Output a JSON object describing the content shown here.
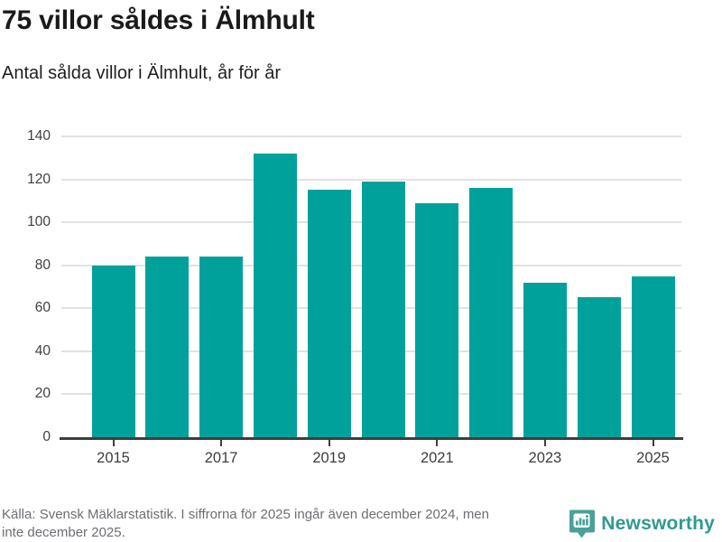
{
  "header": {
    "title": "75 villor såldes i Älmhult",
    "subtitle": "Antal sålda villor i Älmhult, år för år"
  },
  "chart_data": {
    "type": "bar",
    "title": "75 villor såldes i Älmhult",
    "subtitle": "Antal sålda villor i Älmhult, år för år",
    "categories": [
      "2015",
      "2016",
      "2017",
      "2018",
      "2019",
      "2020",
      "2021",
      "2022",
      "2023",
      "2024",
      "2025"
    ],
    "values": [
      80,
      84,
      84,
      132,
      115,
      119,
      109,
      116,
      72,
      65,
      75
    ],
    "xlabel": "",
    "ylabel": "",
    "ylim": [
      0,
      140
    ],
    "ytick_step": 20,
    "ytick_labels": [
      "0",
      "20",
      "40",
      "60",
      "80",
      "100",
      "120",
      "140"
    ],
    "xtick_labels": [
      "2015",
      "2017",
      "2019",
      "2021",
      "2023",
      "2025"
    ],
    "grid": "horizontal",
    "legend": "none",
    "bar_color": "#00a19b"
  },
  "footer": {
    "source_lines": {
      "line1": "Källa: Svensk Mäklarstatistik. I siffrorna för 2025 ingår även december 2024, men",
      "line2": "inte december 2025."
    },
    "logo_text": "Newsworthy"
  },
  "colors": {
    "bar": "#00a19b",
    "gridline": "#e2e2e2",
    "axis": "#3d3d3d",
    "title_text": "#1a1a1a",
    "source_text": "#6e6e74",
    "logo_bubble": "#4aa09a",
    "logo_text": "#2f9a90"
  }
}
